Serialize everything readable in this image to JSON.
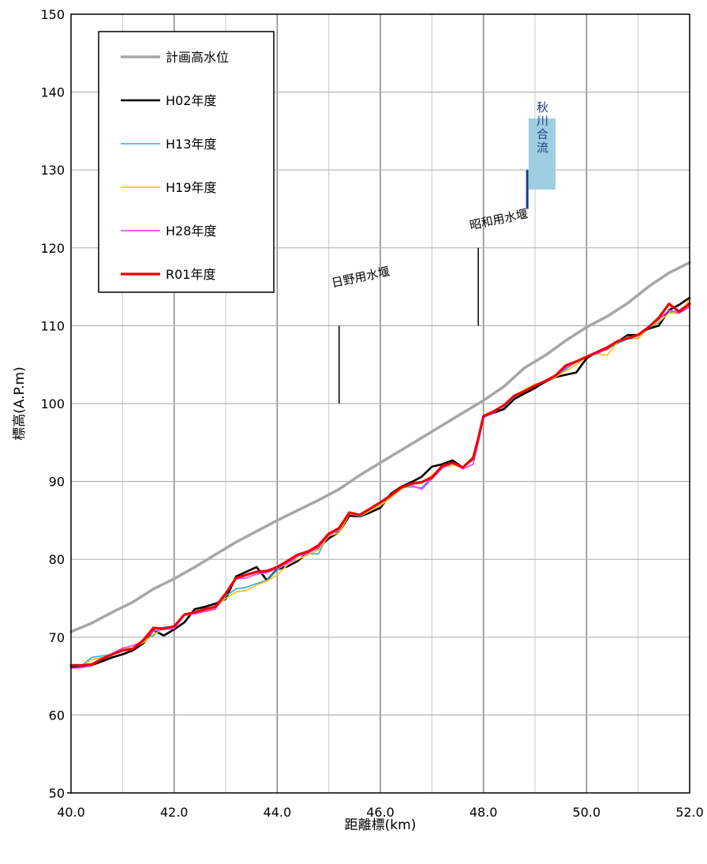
{
  "chart_data": {
    "type": "line",
    "xlabel": "距離標(km)",
    "ylabel": "標高(A.P.m)",
    "xlim": [
      40,
      52
    ],
    "ylim": [
      50,
      150
    ],
    "x_ticks": [
      "40.0",
      "42.0",
      "44.0",
      "46.0",
      "48.0",
      "50.0",
      "52.0"
    ],
    "y_ticks": [
      "50",
      "60",
      "70",
      "80",
      "90",
      "100",
      "110",
      "120",
      "130",
      "140",
      "150"
    ],
    "grid": true,
    "legend_position": "top-left",
    "series": [
      {
        "name": "計画高水位",
        "color": "#a6a6a6",
        "x": [
          40.0,
          40.4,
          40.8,
          41.2,
          41.6,
          42.0,
          42.4,
          42.8,
          43.2,
          43.6,
          44.0,
          44.4,
          44.8,
          45.2,
          45.6,
          46.0,
          46.4,
          46.8,
          47.2,
          47.6,
          48.0,
          48.4,
          48.8,
          49.2,
          49.6,
          50.0,
          50.4,
          50.8,
          51.2,
          51.6,
          52.0
        ],
        "y": [
          70.7,
          71.8,
          73.2,
          74.5,
          76.2,
          77.5,
          79.0,
          80.6,
          82.2,
          83.6,
          85.0,
          86.3,
          87.6,
          89.0,
          90.8,
          92.4,
          94.0,
          95.6,
          97.2,
          98.8,
          100.4,
          102.2,
          104.6,
          106.2,
          108.1,
          109.8,
          111.2,
          112.9,
          115.0,
          116.8,
          118.1
        ]
      },
      {
        "name": "H02年度",
        "color": "#000000",
        "x": [
          40.0,
          40.2,
          40.4,
          40.6,
          40.8,
          41.0,
          41.2,
          41.4,
          41.6,
          41.8,
          42.0,
          42.2,
          42.4,
          42.6,
          42.8,
          43.0,
          43.2,
          43.4,
          43.6,
          43.8,
          44.0,
          44.2,
          44.4,
          44.6,
          44.8,
          45.0,
          45.2,
          45.4,
          45.6,
          45.8,
          46.0,
          46.2,
          46.4,
          46.6,
          46.8,
          47.0,
          47.2,
          47.4,
          47.6,
          47.8,
          47.9,
          48.0,
          48.2,
          48.4,
          48.6,
          48.8,
          49.0,
          49.2,
          49.4,
          49.6,
          49.8,
          50.0,
          50.2,
          50.4,
          50.6,
          50.8,
          51.0,
          51.2,
          51.4,
          51.6,
          51.8,
          52.0
        ],
        "y": [
          66.2,
          66.3,
          66.4,
          66.9,
          67.4,
          67.8,
          68.3,
          69.2,
          70.9,
          70.2,
          71.0,
          71.9,
          73.6,
          73.9,
          74.3,
          74.9,
          77.8,
          78.4,
          79.0,
          77.3,
          78.7,
          79.1,
          79.8,
          80.9,
          81.5,
          82.7,
          83.5,
          85.6,
          85.5,
          86.0,
          86.6,
          88.4,
          89.3,
          89.9,
          90.6,
          91.9,
          92.2,
          92.7,
          91.8,
          93.0,
          95.5,
          98.3,
          98.8,
          99.3,
          100.6,
          101.3,
          102.0,
          102.8,
          103.4,
          103.7,
          104.0,
          105.8,
          106.6,
          107.0,
          107.9,
          108.8,
          108.8,
          109.6,
          110.0,
          112.0,
          112.7,
          113.6
        ]
      },
      {
        "name": "H13年度",
        "color": "#22b4e0",
        "x": [
          40.0,
          40.2,
          40.4,
          40.6,
          40.8,
          41.0,
          41.2,
          41.4,
          41.6,
          41.8,
          42.0,
          42.2,
          42.4,
          42.6,
          42.8,
          43.0,
          43.2,
          43.4,
          43.6,
          43.8,
          44.0,
          44.2,
          44.4,
          44.6,
          44.8,
          45.0,
          45.2,
          45.4,
          45.6,
          45.8,
          46.0,
          46.2,
          46.4,
          46.6,
          46.8,
          47.0,
          47.2,
          47.4,
          47.6,
          47.8,
          47.9,
          48.0,
          48.2,
          48.4,
          48.6,
          48.8,
          49.0,
          49.2,
          49.4,
          49.6,
          49.8,
          50.0,
          50.2,
          50.4,
          50.6,
          50.8,
          51.0,
          51.2,
          51.4,
          51.6,
          51.8,
          52.0
        ],
        "y": [
          66.3,
          66.3,
          67.4,
          67.6,
          67.8,
          68.2,
          68.6,
          69.5,
          70.2,
          71.3,
          71.4,
          72.9,
          73.1,
          73.3,
          73.6,
          75.3,
          76.2,
          76.4,
          76.9,
          77.3,
          78.6,
          79.6,
          80.0,
          80.7,
          80.7,
          83.3,
          83.6,
          85.9,
          85.5,
          86.2,
          86.9,
          88.0,
          89.2,
          89.3,
          89.2,
          90.5,
          91.9,
          92.3,
          91.9,
          92.7,
          95.0,
          98.1,
          99.1,
          99.6,
          100.8,
          101.7,
          102.4,
          102.8,
          103.4,
          104.4,
          105.4,
          106.0,
          106.6,
          107.0,
          107.7,
          108.3,
          108.4,
          109.7,
          110.4,
          111.7,
          112.0,
          113.0
        ]
      },
      {
        "name": "H19年度",
        "color": "#ffc000",
        "x": [
          40.0,
          40.2,
          40.4,
          40.6,
          40.8,
          41.0,
          41.2,
          41.4,
          41.6,
          41.8,
          42.0,
          42.2,
          42.4,
          42.6,
          42.8,
          43.0,
          43.2,
          43.4,
          43.6,
          43.8,
          44.0,
          44.2,
          44.4,
          44.6,
          44.8,
          45.0,
          45.2,
          45.4,
          45.6,
          45.8,
          46.0,
          46.2,
          46.4,
          46.6,
          46.8,
          47.0,
          47.2,
          47.4,
          47.6,
          47.8,
          47.9,
          48.0,
          48.2,
          48.4,
          48.6,
          48.8,
          49.0,
          49.2,
          49.4,
          49.6,
          49.8,
          50.0,
          50.2,
          50.4,
          50.6,
          50.8,
          51.0,
          51.2,
          51.4,
          51.6,
          51.8,
          52.0
        ],
        "y": [
          66.4,
          66.3,
          67.1,
          67.4,
          67.7,
          68.5,
          68.6,
          69.3,
          70.4,
          71.1,
          71.3,
          72.8,
          73.0,
          73.4,
          73.8,
          75.0,
          75.8,
          76.0,
          76.7,
          77.2,
          78.0,
          79.3,
          80.0,
          80.6,
          81.2,
          83.0,
          83.4,
          85.8,
          85.6,
          86.2,
          86.9,
          87.9,
          89.0,
          89.6,
          89.8,
          90.8,
          91.8,
          92.1,
          91.9,
          93.2,
          95.5,
          98.4,
          99.0,
          99.8,
          101.0,
          101.8,
          102.5,
          102.8,
          103.4,
          104.2,
          105.0,
          106.0,
          106.4,
          106.2,
          107.9,
          108.6,
          108.3,
          109.8,
          110.5,
          111.6,
          111.6,
          113.4
        ]
      },
      {
        "name": "H28年度",
        "color": "#ff33ff",
        "x": [
          40.0,
          40.2,
          40.4,
          40.6,
          40.8,
          41.0,
          41.2,
          41.4,
          41.6,
          41.8,
          42.0,
          42.2,
          42.4,
          42.6,
          42.8,
          43.0,
          43.2,
          43.4,
          43.6,
          43.8,
          44.0,
          44.2,
          44.4,
          44.6,
          44.8,
          45.0,
          45.2,
          45.4,
          45.6,
          45.8,
          46.0,
          46.2,
          46.4,
          46.6,
          46.8,
          47.0,
          47.2,
          47.4,
          47.6,
          47.8,
          47.9,
          48.0,
          48.2,
          48.4,
          48.6,
          48.8,
          49.0,
          49.2,
          49.4,
          49.6,
          49.8,
          50.0,
          50.2,
          50.4,
          50.6,
          50.8,
          51.0,
          51.2,
          51.4,
          51.6,
          51.8,
          52.0
        ],
        "y": [
          66.0,
          66.1,
          66.3,
          67.3,
          67.9,
          68.6,
          68.9,
          69.5,
          70.8,
          71.0,
          71.1,
          72.8,
          73.0,
          73.3,
          73.6,
          75.5,
          77.5,
          77.6,
          78.1,
          78.3,
          78.8,
          79.5,
          80.4,
          80.8,
          81.5,
          83.1,
          83.8,
          85.9,
          85.6,
          86.4,
          87.2,
          88.3,
          89.3,
          89.5,
          89.0,
          90.3,
          91.7,
          92.4,
          91.6,
          92.2,
          95.0,
          98.2,
          98.8,
          99.8,
          100.9,
          101.6,
          102.3,
          102.8,
          103.5,
          104.6,
          105.3,
          106.0,
          106.4,
          107.0,
          108.0,
          108.4,
          108.8,
          109.8,
          110.8,
          112.0,
          111.6,
          112.4
        ]
      },
      {
        "name": "R01年度",
        "color": "#ee0000",
        "x": [
          40.0,
          40.2,
          40.4,
          40.6,
          40.8,
          41.0,
          41.2,
          41.4,
          41.6,
          41.8,
          42.0,
          42.2,
          42.4,
          42.6,
          42.8,
          43.0,
          43.2,
          43.4,
          43.6,
          43.8,
          44.0,
          44.2,
          44.4,
          44.6,
          44.8,
          45.0,
          45.2,
          45.4,
          45.6,
          45.8,
          46.0,
          46.2,
          46.4,
          46.6,
          46.8,
          47.0,
          47.2,
          47.4,
          47.6,
          47.8,
          47.9,
          48.0,
          48.2,
          48.4,
          48.6,
          48.8,
          49.0,
          49.2,
          49.4,
          49.6,
          49.8,
          50.0,
          50.2,
          50.4,
          50.6,
          50.8,
          51.0,
          51.2,
          51.4,
          51.6,
          51.8,
          52.0
        ],
        "y": [
          66.4,
          66.4,
          66.5,
          67.2,
          67.8,
          68.3,
          68.5,
          69.6,
          71.2,
          71.1,
          71.4,
          72.9,
          73.2,
          73.6,
          73.9,
          75.6,
          77.6,
          78.0,
          78.4,
          78.5,
          79.0,
          79.8,
          80.6,
          81.0,
          81.8,
          83.3,
          84.0,
          86.0,
          85.7,
          86.5,
          87.3,
          88.2,
          89.2,
          89.7,
          89.9,
          90.5,
          92.0,
          92.4,
          91.8,
          93.0,
          95.5,
          98.4,
          99.0,
          99.8,
          101.0,
          101.6,
          102.3,
          102.9,
          103.6,
          104.9,
          105.4,
          106.0,
          106.6,
          107.2,
          108.0,
          108.4,
          108.8,
          109.8,
          111.0,
          112.8,
          111.8,
          112.8
        ]
      }
    ],
    "annotations": [
      {
        "label": "日野用水堰",
        "x": 45.2,
        "y_from": 100,
        "y_to": 110
      },
      {
        "label": "昭和用水堰",
        "x": 47.9,
        "y_from": 110,
        "y_to": 120
      },
      {
        "label": "秋川合流",
        "x": 48.85,
        "y_from": 125,
        "y_to": 130
      }
    ]
  }
}
